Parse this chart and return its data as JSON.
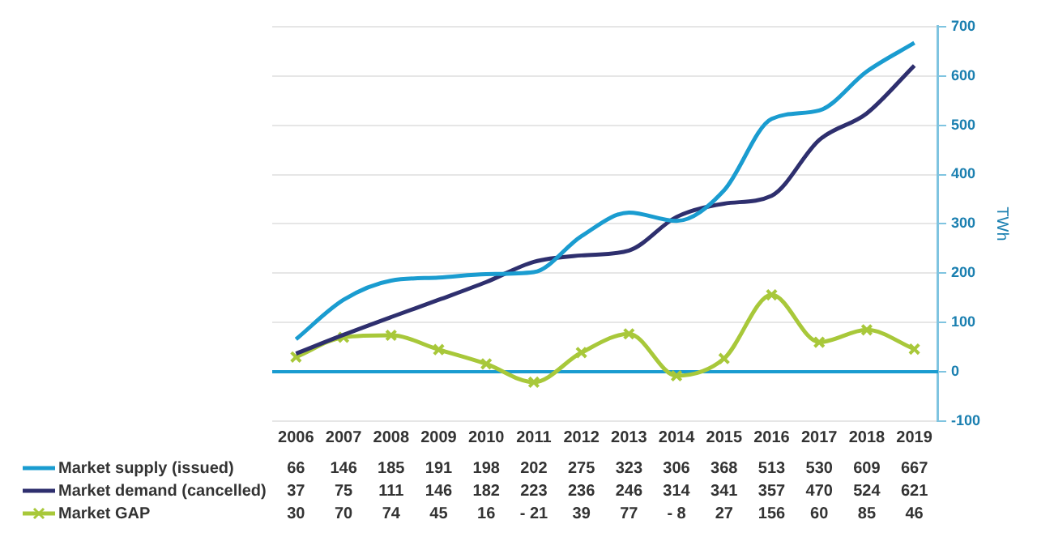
{
  "chart_data": {
    "type": "line",
    "ylabel": "TWh",
    "categories": [
      "2006",
      "2007",
      "2008",
      "2009",
      "2010",
      "2011",
      "2012",
      "2013",
      "2014",
      "2015",
      "2016",
      "2017",
      "2018",
      "2019"
    ],
    "series": [
      {
        "name": "Market supply (issued)",
        "color": "#1a9cd0",
        "marker": "none",
        "values": [
          66,
          146,
          185,
          191,
          198,
          202,
          275,
          323,
          306,
          368,
          513,
          530,
          609,
          667
        ],
        "value_labels": [
          "66",
          "146",
          "185",
          "191",
          "198",
          "202",
          "275",
          "323",
          "306",
          "368",
          "513",
          "530",
          "609",
          "667"
        ]
      },
      {
        "name": "Market demand (cancelled)",
        "color": "#2e2f6e",
        "marker": "none",
        "values": [
          37,
          75,
          111,
          146,
          182,
          223,
          236,
          246,
          314,
          341,
          357,
          470,
          524,
          621
        ],
        "value_labels": [
          "37",
          "75",
          "111",
          "146",
          "182",
          "223",
          "236",
          "246",
          "314",
          "341",
          "357",
          "470",
          "524",
          "621"
        ]
      },
      {
        "name": "Market GAP",
        "color": "#a8c83a",
        "marker": "cross",
        "values": [
          30,
          70,
          74,
          45,
          16,
          -21,
          39,
          77,
          -8,
          27,
          156,
          60,
          85,
          46
        ],
        "value_labels": [
          "30",
          "70",
          "74",
          "45",
          "16",
          "- 21",
          "39",
          "77",
          "- 8",
          "27",
          "156",
          "60",
          "85",
          "46"
        ]
      }
    ],
    "ylim": [
      -100,
      700
    ],
    "yticks": [
      -100,
      0,
      100,
      200,
      300,
      400,
      500,
      600,
      700
    ],
    "grid": "y",
    "legend": "bottom",
    "ref_lines": [
      {
        "axis": "y",
        "value": 0,
        "color": "#1a9cd0"
      }
    ]
  }
}
